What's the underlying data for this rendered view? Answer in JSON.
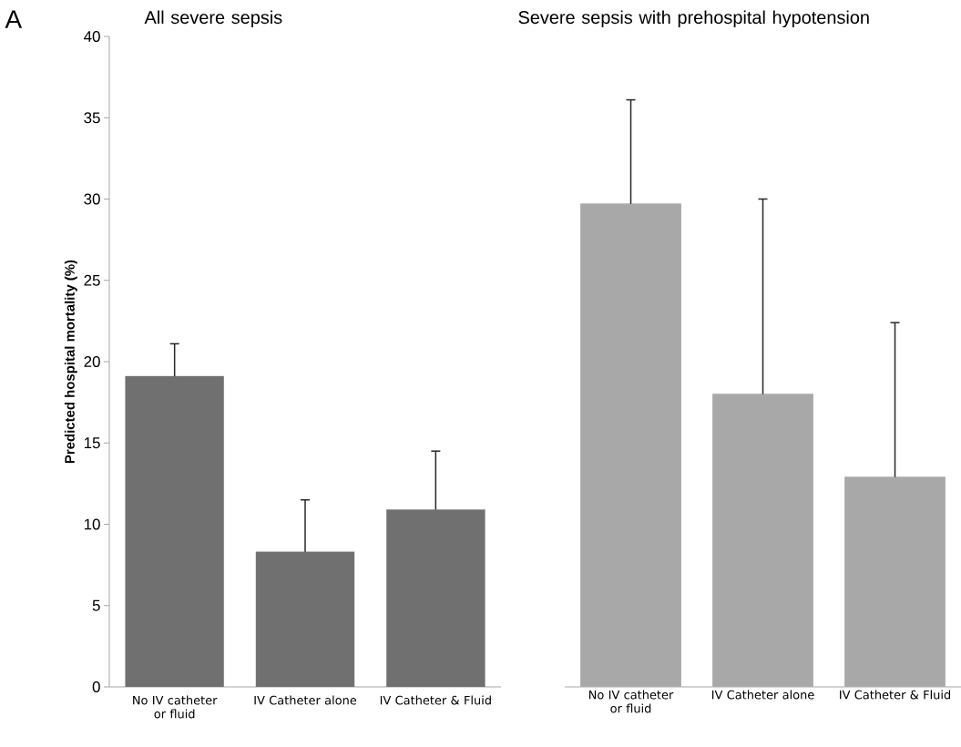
{
  "chart_data": [
    {
      "type": "bar",
      "title": "All severe sepsis",
      "ylabel": "Predicted hospital mortality (%)",
      "annotations": [
        "A"
      ],
      "categories": [
        "No IV catheter or fluid",
        "IV Catheter alone",
        "IV Catheter & Fluid"
      ],
      "values": [
        19.1,
        8.3,
        10.9
      ],
      "errors": [
        [
          19.1,
          21.1
        ],
        [
          8.3,
          11.5
        ],
        [
          10.9,
          14.5
        ]
      ],
      "color": "#707070",
      "ylim": [
        0,
        40
      ],
      "yticks": [
        0,
        5,
        10,
        15,
        20,
        25,
        30,
        35,
        40
      ],
      "grid": false
    },
    {
      "type": "bar",
      "title": "Severe sepsis with prehospital hypotension",
      "categories": [
        "No IV catheter or fluid",
        "IV Catheter alone",
        "IV Catheter & Fluid"
      ],
      "values": [
        29.7,
        18.0,
        12.9
      ],
      "errors": [
        [
          29.7,
          36.1
        ],
        [
          18.0,
          30.0
        ],
        [
          12.9,
          22.4
        ]
      ],
      "color": "#a8a8a8",
      "ylim": [
        0,
        40
      ],
      "tick_labels": "x",
      "grid": false
    }
  ]
}
